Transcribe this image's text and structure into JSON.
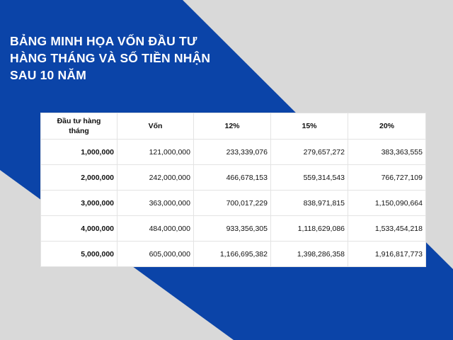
{
  "title_lines": [
    "BẢNG MINH HỌA VỐN ĐẦU TƯ",
    "HÀNG THÁNG VÀ SỐ TIỀN NHẬN",
    "SAU 10 NĂM"
  ],
  "colors": {
    "background": "#d9d9d9",
    "accent_blue": "#0b44a8",
    "title_text": "#ffffff"
  },
  "table": {
    "headers": [
      "Đầu tư hàng",
      "tháng",
      "Vốn",
      "12%",
      "15%",
      "20%"
    ],
    "rows": [
      [
        "1,000,000",
        "121,000,000",
        "233,339,076",
        "279,657,272",
        "383,363,555"
      ],
      [
        "2,000,000",
        "242,000,000",
        "466,678,153",
        "559,314,543",
        "766,727,109"
      ],
      [
        "3,000,000",
        "363,000,000",
        "700,017,229",
        "838,971,815",
        "1,150,090,664"
      ],
      [
        "4,000,000",
        "484,000,000",
        "933,356,305",
        "1,118,629,086",
        "1,533,454,218"
      ],
      [
        "5,000,000",
        "605,000,000",
        "1,166,695,382",
        "1,398,286,358",
        "1,916,817,773"
      ]
    ]
  }
}
